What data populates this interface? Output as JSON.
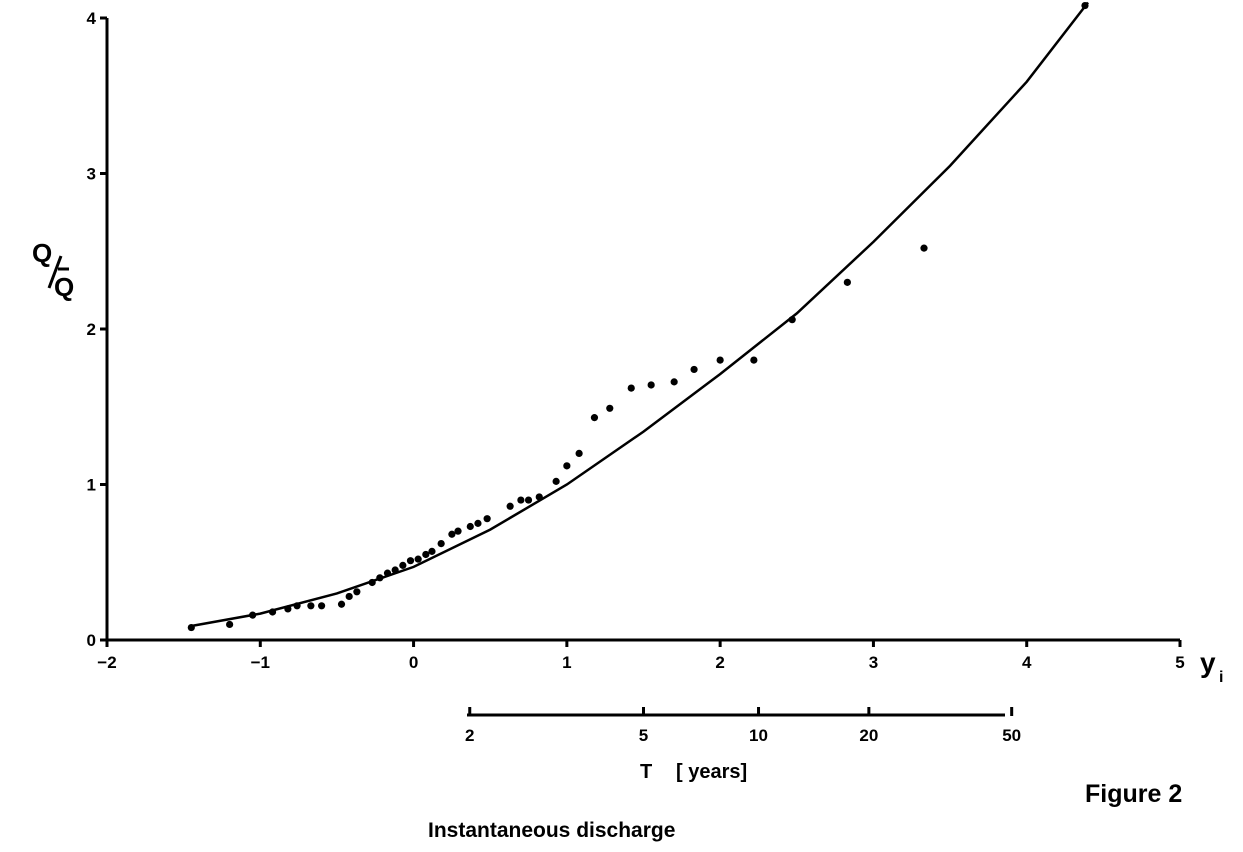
{
  "chart_data": {
    "type": "scatter",
    "title": "",
    "xlabel": "y",
    "xlabel_subscript": "i",
    "ylabel_numerator": "Q",
    "ylabel_denominator": "Q",
    "xlim": [
      -2,
      5
    ],
    "ylim": [
      0,
      4
    ],
    "x_ticks": [
      -2,
      -1,
      0,
      1,
      2,
      3,
      4,
      5
    ],
    "x_tick_labels": [
      "−2",
      "−1",
      "0",
      "1",
      "2",
      "3",
      "4",
      "5"
    ],
    "y_ticks": [
      0,
      1,
      2,
      3,
      4
    ],
    "y_tick_labels": [
      "0",
      "1",
      "2",
      "3",
      "4"
    ],
    "return_period_axis": {
      "label_main": "T",
      "label_unit": "[ years]",
      "ticks": [
        2,
        5,
        10,
        20,
        50
      ],
      "tick_labels": [
        "2",
        "5",
        "10",
        "20",
        "50"
      ]
    },
    "series": [
      {
        "kind": "points",
        "x": [
          -1.45,
          -1.2,
          -1.05,
          -0.92,
          -0.82,
          -0.76,
          -0.67,
          -0.6,
          -0.47,
          -0.42,
          -0.37,
          -0.27,
          -0.22,
          -0.17,
          -0.12,
          -0.07,
          -0.02,
          0.03,
          0.08,
          0.12,
          0.18,
          0.25,
          0.29,
          0.37,
          0.42,
          0.48,
          0.63,
          0.7,
          0.75,
          0.82,
          0.93,
          1.0,
          1.08,
          1.18,
          1.28,
          1.42,
          1.55,
          1.7,
          1.83,
          2.0,
          2.22,
          2.47,
          2.83,
          3.33,
          4.38
        ],
        "y": [
          0.08,
          0.1,
          0.16,
          0.18,
          0.2,
          0.22,
          0.22,
          0.22,
          0.23,
          0.28,
          0.31,
          0.37,
          0.4,
          0.43,
          0.45,
          0.48,
          0.51,
          0.52,
          0.55,
          0.57,
          0.62,
          0.68,
          0.7,
          0.73,
          0.75,
          0.78,
          0.86,
          0.9,
          0.9,
          0.92,
          1.02,
          1.12,
          1.2,
          1.43,
          1.49,
          1.62,
          1.64,
          1.66,
          1.74,
          1.8,
          1.8,
          2.06,
          2.3,
          2.52,
          4.08
        ]
      },
      {
        "kind": "curve",
        "x": [
          -1.45,
          -1.0,
          -0.5,
          0.0,
          0.5,
          1.0,
          1.5,
          2.0,
          2.5,
          3.0,
          3.5,
          4.0,
          4.4
        ],
        "y": [
          0.09,
          0.17,
          0.3,
          0.47,
          0.71,
          1.0,
          1.34,
          1.71,
          2.1,
          2.56,
          3.05,
          3.59,
          4.1
        ]
      }
    ]
  },
  "figure_label": "Figure 2",
  "caption": "Instantaneous discharge"
}
